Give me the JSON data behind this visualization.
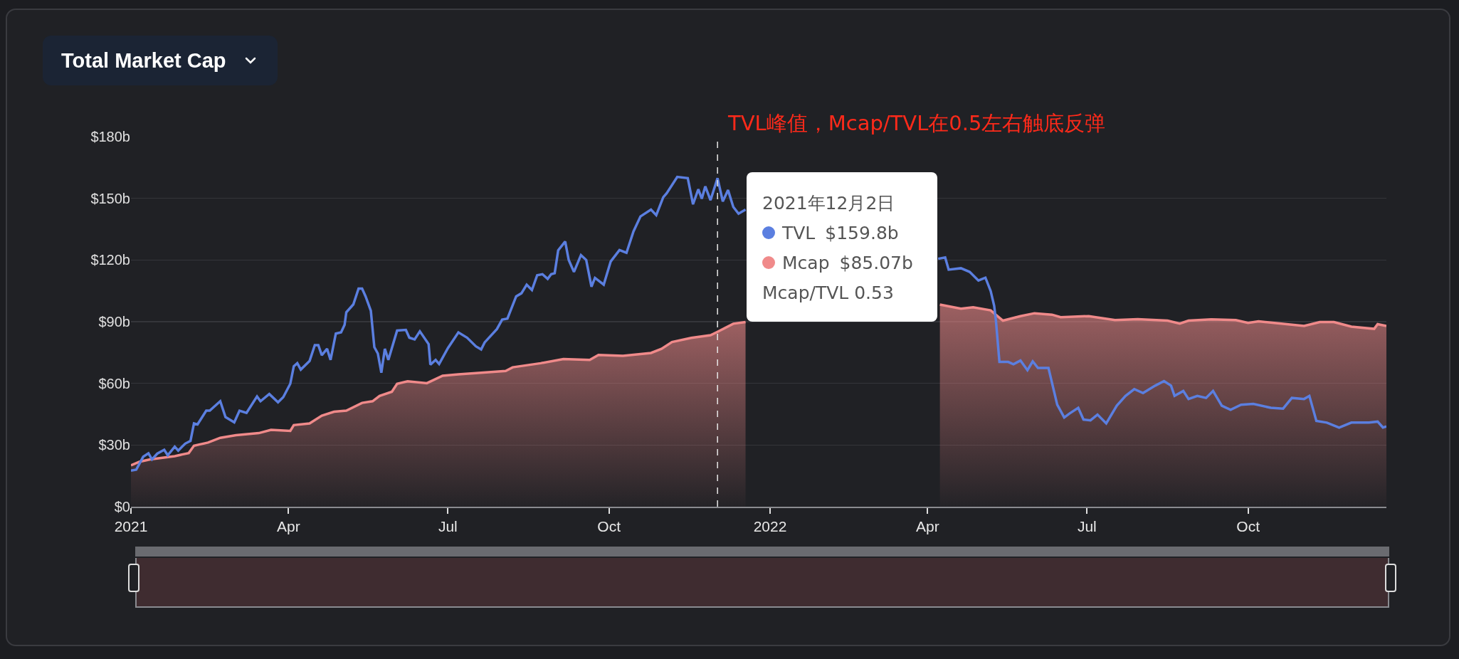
{
  "chart_data": {
    "type": "line",
    "title": "Total Market Cap",
    "xlim": [
      "2021-01-01",
      "2022-12-19"
    ],
    "xticks": [
      {
        "value": "2021-01-01",
        "label": "2021"
      },
      {
        "value": "2021-04-01",
        "label": "Apr"
      },
      {
        "value": "2021-07-01",
        "label": "Jul"
      },
      {
        "value": "2021-10-01",
        "label": "Oct"
      },
      {
        "value": "2022-01-01",
        "label": "2022"
      },
      {
        "value": "2022-04-01",
        "label": "Apr"
      },
      {
        "value": "2022-07-01",
        "label": "Jul"
      },
      {
        "value": "2022-10-01",
        "label": "Oct"
      }
    ],
    "ylim": [
      0,
      180
    ],
    "yticks": [
      {
        "value": 0,
        "label": "$0"
      },
      {
        "value": 30,
        "label": "$30b"
      },
      {
        "value": 60,
        "label": "$60b"
      },
      {
        "value": 90,
        "label": "$90b"
      },
      {
        "value": 120,
        "label": "$120b"
      },
      {
        "value": 150,
        "label": "$150b"
      },
      {
        "value": 180,
        "label": "$180b"
      }
    ],
    "grid": "y",
    "legend": "top",
    "marker": "none",
    "series": [
      {
        "name": "Mcap",
        "type": "area",
        "color": "#f08a8a",
        "x": [
          "2021-01-01",
          "2021-01-06",
          "2021-01-12",
          "2021-01-26",
          "2021-02-03",
          "2021-02-06",
          "2021-02-14",
          "2021-02-21",
          "2021-03-02",
          "2021-03-15",
          "2021-03-22",
          "2021-04-02",
          "2021-04-04",
          "2021-04-13",
          "2021-04-20",
          "2021-04-27",
          "2021-05-04",
          "2021-05-13",
          "2021-05-19",
          "2021-05-23",
          "2021-05-30",
          "2021-06-02",
          "2021-06-08",
          "2021-06-19",
          "2021-06-28",
          "2021-07-07",
          "2021-07-20",
          "2021-08-03",
          "2021-08-07",
          "2021-08-23",
          "2021-09-05",
          "2021-09-20",
          "2021-09-25",
          "2021-10-09",
          "2021-10-25",
          "2021-10-31",
          "2021-11-06",
          "2021-11-17",
          "2021-11-28",
          "2021-12-02",
          "2021-12-11",
          "2021-12-18",
          "2022-02-15",
          "2022-04-08",
          "2022-04-20",
          "2022-04-27",
          "2022-05-07",
          "2022-05-14",
          "2022-05-24",
          "2022-06-01",
          "2022-06-11",
          "2022-06-16",
          "2022-07-02",
          "2022-07-17",
          "2022-07-30",
          "2022-08-16",
          "2022-08-23",
          "2022-08-28",
          "2022-09-10",
          "2022-09-24",
          "2022-10-01",
          "2022-10-07",
          "2022-10-19",
          "2022-11-02",
          "2022-11-11",
          "2022-11-19",
          "2022-11-29",
          "2022-12-12",
          "2022-12-14",
          "2022-12-19"
        ],
        "values": [
          20.1,
          21.9,
          23,
          24.6,
          26.1,
          29.7,
          31.2,
          33.5,
          34.8,
          35.8,
          37.4,
          36.9,
          39.7,
          40.5,
          44.3,
          46.2,
          46.7,
          50.5,
          51.3,
          53.9,
          55.9,
          59.8,
          61,
          60.1,
          63.7,
          64.4,
          65.2,
          66,
          67.8,
          69.8,
          71.8,
          71.4,
          73.8,
          73.4,
          74.8,
          76.8,
          80.1,
          82.1,
          83.4,
          85.07,
          89,
          89.8,
          null,
          98.3,
          96.3,
          97,
          95.5,
          90.5,
          92.7,
          94.1,
          93.4,
          92.2,
          92.7,
          90.8,
          91.2,
          90.5,
          89.1,
          90.5,
          91.1,
          90.8,
          89.4,
          90.2,
          89.1,
          87.9,
          89.8,
          89.8,
          87.6,
          86.5,
          88.8,
          87.9
        ]
      },
      {
        "name": "TVL",
        "color": "#5b7fe0",
        "x": [
          "2021-01-01",
          "2021-01-04",
          "2021-01-08",
          "2021-01-11",
          "2021-01-13",
          "2021-01-16",
          "2021-01-20",
          "2021-01-22",
          "2021-01-26",
          "2021-01-28",
          "2021-02-01",
          "2021-02-04",
          "2021-02-06",
          "2021-02-08",
          "2021-02-13",
          "2021-02-15",
          "2021-02-21",
          "2021-02-24",
          "2021-03-01",
          "2021-03-04",
          "2021-03-08",
          "2021-03-14",
          "2021-03-16",
          "2021-03-21",
          "2021-03-26",
          "2021-03-29",
          "2021-04-02",
          "2021-04-04",
          "2021-04-06",
          "2021-04-08",
          "2021-04-13",
          "2021-04-16",
          "2021-04-18",
          "2021-04-20",
          "2021-04-23",
          "2021-04-25",
          "2021-04-28",
          "2021-05-01",
          "2021-05-03",
          "2021-05-04",
          "2021-05-08",
          "2021-05-11",
          "2021-05-13",
          "2021-05-15",
          "2021-05-18",
          "2021-05-20",
          "2021-05-22",
          "2021-05-24",
          "2021-05-26",
          "2021-05-28",
          "2021-06-02",
          "2021-06-07",
          "2021-06-09",
          "2021-06-12",
          "2021-06-15",
          "2021-06-20",
          "2021-06-21",
          "2021-06-24",
          "2021-06-26",
          "2021-07-01",
          "2021-07-07",
          "2021-07-12",
          "2021-07-17",
          "2021-07-20",
          "2021-07-22",
          "2021-07-29",
          "2021-08-01",
          "2021-08-04",
          "2021-08-09",
          "2021-08-12",
          "2021-08-15",
          "2021-08-18",
          "2021-08-21",
          "2021-08-24",
          "2021-08-27",
          "2021-08-29",
          "2021-08-31",
          "2021-09-02",
          "2021-09-06",
          "2021-09-08",
          "2021-09-11",
          "2021-09-15",
          "2021-09-18",
          "2021-09-21",
          "2021-09-23",
          "2021-09-28",
          "2021-10-02",
          "2021-10-07",
          "2021-10-11",
          "2021-10-15",
          "2021-10-19",
          "2021-10-25",
          "2021-10-28",
          "2021-11-01",
          "2021-11-03",
          "2021-11-09",
          "2021-11-15",
          "2021-11-18",
          "2021-11-21",
          "2021-11-23",
          "2021-11-25",
          "2021-11-28",
          "2021-12-02",
          "2021-12-05",
          "2021-12-08",
          "2021-12-11",
          "2021-12-14",
          "2021-12-18",
          "2022-02-15",
          "2022-04-07",
          "2022-04-11",
          "2022-04-13",
          "2022-04-20",
          "2022-04-25",
          "2022-04-30",
          "2022-05-04",
          "2022-05-07",
          "2022-05-09",
          "2022-05-10",
          "2022-05-12",
          "2022-05-17",
          "2022-05-20",
          "2022-05-24",
          "2022-05-28",
          "2022-05-31",
          "2022-06-03",
          "2022-06-09",
          "2022-06-14",
          "2022-06-18",
          "2022-06-21",
          "2022-06-26",
          "2022-06-29",
          "2022-07-03",
          "2022-07-07",
          "2022-07-12",
          "2022-07-18",
          "2022-07-23",
          "2022-07-28",
          "2022-08-02",
          "2022-08-09",
          "2022-08-14",
          "2022-08-18",
          "2022-08-20",
          "2022-08-25",
          "2022-08-28",
          "2022-09-02",
          "2022-09-07",
          "2022-09-11",
          "2022-09-16",
          "2022-09-21",
          "2022-09-27",
          "2022-10-04",
          "2022-10-14",
          "2022-10-21",
          "2022-10-26",
          "2022-11-02",
          "2022-11-05",
          "2022-11-09",
          "2022-11-15",
          "2022-11-22",
          "2022-11-29",
          "2022-12-09",
          "2022-12-14",
          "2022-12-17",
          "2022-12-19"
        ],
        "values": [
          17.6,
          18,
          24.3,
          26,
          23,
          25.8,
          27.7,
          25,
          29.2,
          27.3,
          30.7,
          32,
          40.5,
          40,
          46.7,
          46.7,
          51.3,
          43.6,
          41,
          46.7,
          45.6,
          53.6,
          51.3,
          54.8,
          50.8,
          53.3,
          59.8,
          68.3,
          69.8,
          66.7,
          70.9,
          78.6,
          78.6,
          73.7,
          76.8,
          71.4,
          84.2,
          84.8,
          88.4,
          94.6,
          98.4,
          106.1,
          106.1,
          102.3,
          95.3,
          77.6,
          74.5,
          65.2,
          76.8,
          71.4,
          85.7,
          86,
          82.2,
          81.4,
          85.3,
          79.1,
          69.1,
          71.4,
          69.4,
          77.1,
          84.8,
          82.2,
          78,
          76.5,
          79.9,
          86.4,
          91,
          91.5,
          102.3,
          103.8,
          108,
          105.4,
          112.6,
          113.1,
          110.8,
          113.1,
          113.6,
          124.7,
          129,
          120,
          114.2,
          122.4,
          120,
          107,
          111.3,
          108,
          119.3,
          124.8,
          123.5,
          133.9,
          141.2,
          144.5,
          141.8,
          150.5,
          152.5,
          160.4,
          159.8,
          147.1,
          154.4,
          149.8,
          155.8,
          149.1,
          159.8,
          148.5,
          154,
          145.8,
          142.5,
          144.5,
          null,
          120.6,
          121.2,
          115.3,
          116,
          114.2,
          110,
          111.4,
          104.9,
          97.7,
          90.5,
          70.4,
          70.4,
          69.3,
          71.1,
          66.4,
          70.7,
          67.5,
          67.5,
          49.6,
          43.4,
          45.3,
          48.1,
          42.4,
          42,
          44.8,
          40.5,
          49.1,
          53.9,
          57.2,
          55.3,
          58.9,
          61.1,
          58.9,
          53.9,
          56.3,
          52.4,
          53.9,
          52.9,
          56.3,
          49.1,
          47.1,
          49.6,
          50,
          48.1,
          47.7,
          52.9,
          52.4,
          53.9,
          41.7,
          40.9,
          38.5,
          40.9,
          40.9,
          41.4,
          38.5,
          39.1
        ]
      }
    ],
    "ref_lines": [
      {
        "axis": "x",
        "value": "2021-12-02",
        "line_style": "dashed",
        "color": "#e8e8e8"
      }
    ],
    "annotations": [
      "TVL峰值，Mcap/TVL在0.5左右触底反弹",
      "2021年12月2日",
      "$159.8b",
      "$85.07b",
      "Mcap/TVL  0.53"
    ]
  }
}
